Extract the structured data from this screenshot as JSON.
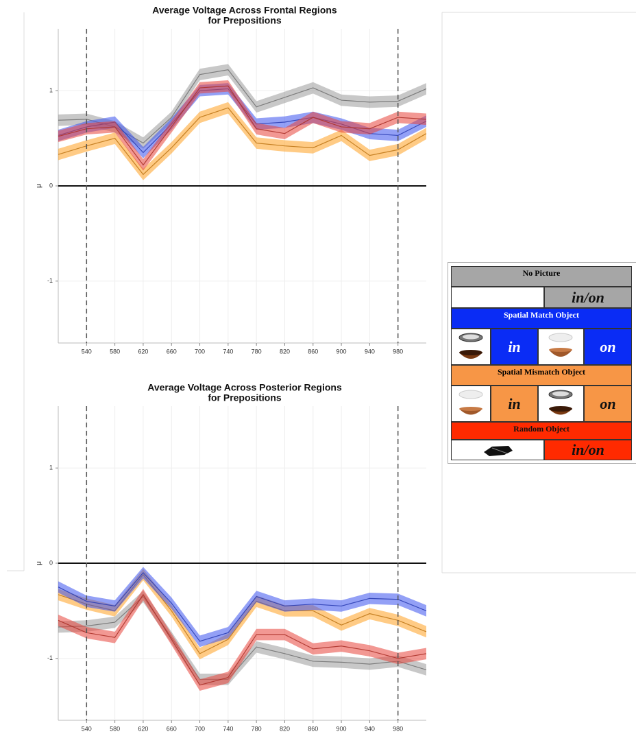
{
  "chart_data": [
    {
      "type": "line",
      "title": [
        "Average Voltage Across Frontal Regions",
        "for Prepositions"
      ],
      "ylabel": "μ",
      "x": [
        500,
        540,
        580,
        620,
        660,
        700,
        740,
        780,
        820,
        860,
        900,
        940,
        980,
        1020
      ],
      "xlim": [
        500,
        1020
      ],
      "xticks": [
        540,
        580,
        620,
        660,
        700,
        740,
        780,
        820,
        860,
        900,
        940,
        980
      ],
      "ylim": [
        -1.65,
        1.65
      ],
      "yticks": [
        -1,
        0,
        1
      ],
      "grid": true,
      "vlines": [
        540,
        980
      ],
      "hline": 0,
      "series": [
        {
          "name": "No Picture",
          "color": "#9a9a9a",
          "error": 0.06,
          "values": [
            0.69,
            0.7,
            0.62,
            0.45,
            0.72,
            1.17,
            1.22,
            0.83,
            0.93,
            1.03,
            0.9,
            0.88,
            0.89,
            1.02
          ]
        },
        {
          "name": "Spatial Mismatch Object",
          "color": "#ffa020",
          "error": 0.06,
          "values": [
            0.33,
            0.42,
            0.5,
            0.12,
            0.4,
            0.72,
            0.82,
            0.45,
            0.42,
            0.4,
            0.53,
            0.32,
            0.38,
            0.55
          ]
        },
        {
          "name": "Spatial Match Object",
          "color": "#3a52ee",
          "error": 0.06,
          "values": [
            0.53,
            0.62,
            0.67,
            0.35,
            0.65,
            1.0,
            1.02,
            0.65,
            0.67,
            0.72,
            0.65,
            0.55,
            0.53,
            0.68
          ]
        },
        {
          "name": "Random Object",
          "color": "#e8443a",
          "error": 0.06,
          "values": [
            0.52,
            0.6,
            0.62,
            0.22,
            0.62,
            1.03,
            1.05,
            0.6,
            0.55,
            0.72,
            0.62,
            0.6,
            0.72,
            0.7
          ]
        }
      ]
    },
    {
      "type": "line",
      "title": [
        "Average Voltage Across Posterior Regions",
        "for Prepositions"
      ],
      "ylabel": "μ",
      "x": [
        500,
        540,
        580,
        620,
        660,
        700,
        740,
        780,
        820,
        860,
        900,
        940,
        980,
        1020
      ],
      "xlim": [
        500,
        1020
      ],
      "xticks": [
        540,
        580,
        620,
        660,
        700,
        740,
        780,
        820,
        860,
        900,
        940,
        980
      ],
      "ylim": [
        -1.65,
        1.65
      ],
      "yticks": [
        -1,
        0,
        1
      ],
      "grid": true,
      "vlines": [
        540,
        980
      ],
      "hline": 0,
      "series": [
        {
          "name": "No Picture",
          "color": "#9a9a9a",
          "error": 0.06,
          "values": [
            -0.67,
            -0.66,
            -0.62,
            -0.35,
            -0.78,
            -1.22,
            -1.22,
            -0.88,
            -0.95,
            -1.03,
            -1.04,
            -1.06,
            -1.03,
            -1.12
          ]
        },
        {
          "name": "Spatial Mismatch Object",
          "color": "#ffa020",
          "error": 0.06,
          "values": [
            -0.33,
            -0.43,
            -0.5,
            -0.12,
            -0.5,
            -0.95,
            -0.8,
            -0.4,
            -0.5,
            -0.5,
            -0.65,
            -0.53,
            -0.6,
            -0.72
          ]
        },
        {
          "name": "Spatial Match Object",
          "color": "#3a52ee",
          "error": 0.06,
          "values": [
            -0.25,
            -0.4,
            -0.45,
            -0.1,
            -0.42,
            -0.82,
            -0.73,
            -0.35,
            -0.45,
            -0.43,
            -0.45,
            -0.37,
            -0.38,
            -0.5
          ]
        },
        {
          "name": "Random Object",
          "color": "#e8443a",
          "error": 0.06,
          "values": [
            -0.6,
            -0.73,
            -0.78,
            -0.33,
            -0.8,
            -1.28,
            -1.2,
            -0.75,
            -0.75,
            -0.9,
            -0.87,
            -0.92,
            -1.0,
            -0.95
          ]
        }
      ]
    }
  ],
  "legend": {
    "no_picture": {
      "title": "No Picture",
      "label": "in/on"
    },
    "match": {
      "title": "Spatial Match Object",
      "left_label": "in",
      "right_label": "on"
    },
    "mismatch": {
      "title": "Spatial Mismatch Object",
      "left_label": "in",
      "right_label": "on"
    },
    "random": {
      "title": "Random Object",
      "label": "in/on"
    }
  }
}
